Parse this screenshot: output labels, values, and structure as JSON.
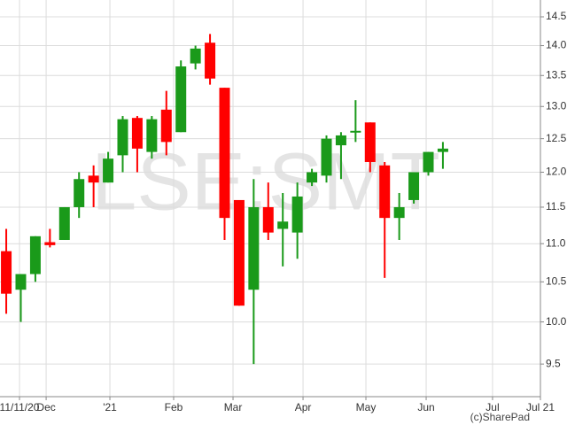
{
  "chart_data": {
    "type": "candlestick",
    "watermark": "LSE:SMT",
    "credit": "(c)SharePad",
    "log_scale": true,
    "grid": true,
    "up_color": "#1a9a1a",
    "down_color": "#ff0000",
    "x": [
      0,
      1,
      2,
      3,
      4,
      5,
      6,
      7,
      8,
      9,
      10,
      11,
      12,
      13,
      14,
      15,
      16,
      17,
      18,
      19,
      20,
      21,
      22,
      23,
      24,
      25,
      26,
      27,
      28,
      29,
      30
    ],
    "open": [
      10.9,
      10.4,
      10.6,
      11.02,
      11.05,
      11.5,
      11.95,
      11.85,
      12.25,
      12.82,
      12.3,
      12.95,
      12.6,
      13.7,
      14.05,
      13.3,
      11.6,
      10.4,
      11.5,
      11.2,
      11.15,
      11.85,
      11.95,
      12.4,
      12.6,
      12.75,
      12.1,
      11.35,
      11.6,
      12.0,
      12.3
    ],
    "high": [
      11.2,
      10.6,
      11.1,
      11.2,
      11.5,
      12.0,
      12.1,
      12.3,
      12.85,
      12.85,
      12.85,
      13.25,
      13.75,
      14.0,
      14.2,
      13.3,
      11.6,
      11.9,
      11.85,
      11.7,
      11.85,
      12.05,
      12.55,
      12.6,
      13.1,
      12.75,
      12.15,
      11.7,
      12.0,
      12.3,
      12.45
    ],
    "low": [
      10.1,
      10.0,
      10.5,
      10.95,
      11.05,
      11.35,
      11.5,
      11.85,
      12.0,
      12.0,
      12.2,
      12.25,
      12.6,
      13.6,
      13.35,
      11.05,
      10.2,
      9.5,
      11.05,
      10.7,
      10.8,
      11.8,
      11.85,
      11.9,
      12.45,
      12.0,
      10.55,
      11.05,
      11.55,
      11.95,
      12.05
    ],
    "close": [
      10.35,
      10.6,
      11.1,
      10.98,
      11.5,
      11.9,
      11.85,
      12.2,
      12.8,
      12.35,
      12.8,
      12.45,
      13.65,
      13.95,
      13.45,
      11.35,
      10.2,
      11.5,
      11.15,
      11.3,
      11.65,
      12.0,
      12.5,
      12.55,
      12.62,
      12.15,
      11.35,
      11.5,
      12.0,
      12.3,
      12.35
    ],
    "xlim": [
      -0.43,
      36.7
    ],
    "xticks": [
      {
        "value": 0.91,
        "label": "11/11/20"
      },
      {
        "value": 2.74,
        "label": "Dec"
      },
      {
        "value": 7.12,
        "label": "'21"
      },
      {
        "value": 11.5,
        "label": "Feb"
      },
      {
        "value": 15.58,
        "label": "Mar"
      },
      {
        "value": 20.39,
        "label": "Apr"
      },
      {
        "value": 24.71,
        "label": "May"
      },
      {
        "value": 28.85,
        "label": "Jun"
      },
      {
        "value": 33.41,
        "label": "Jul"
      },
      {
        "value": 36.7,
        "label": "Jul 21"
      }
    ],
    "ylim": [
      9.13,
      14.8
    ],
    "yticks": [
      9.5,
      {
        "value": 10,
        "label": "10.0"
      },
      10.5,
      {
        "value": 11,
        "label": "11.0"
      },
      11.5,
      {
        "value": 12,
        "label": "12.0"
      },
      12.5,
      {
        "value": 13,
        "label": "13.0"
      },
      13.5,
      {
        "value": 14,
        "label": "14.0"
      },
      14.5
    ]
  }
}
